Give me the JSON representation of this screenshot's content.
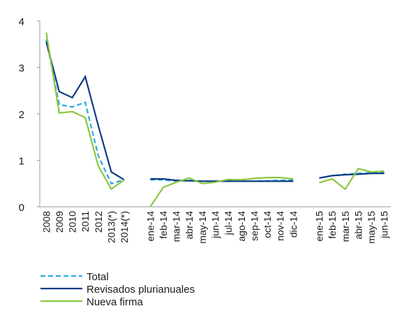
{
  "chart_data": {
    "type": "line",
    "categories": [
      "2008",
      "2009",
      "2010",
      "2011",
      "2012",
      "2013(*)",
      "2014(*)",
      null,
      "ene-14",
      "feb-14",
      "mar-14",
      "abr-14",
      "may-14",
      "jun-14",
      "jul-14",
      "ago-14",
      "sep-14",
      "oct-14",
      "nov-14",
      "dic-14",
      null,
      "ene-15",
      "feb-15",
      "mar-15",
      "abr-15",
      "may-15",
      "jun-15"
    ],
    "series": [
      {
        "name": "Total",
        "color": "#29a8e0",
        "dashed": true,
        "values": [
          3.6,
          2.2,
          2.15,
          2.25,
          1.1,
          0.5,
          0.58,
          null,
          0.58,
          0.58,
          0.55,
          0.57,
          0.55,
          0.55,
          0.55,
          0.55,
          0.55,
          0.56,
          0.57,
          0.57,
          null,
          0.62,
          0.67,
          0.7,
          0.72,
          0.73,
          0.74
        ]
      },
      {
        "name": "Revisados plurianuales",
        "color": "#0d3b85",
        "values": [
          3.55,
          2.48,
          2.35,
          2.8,
          1.75,
          0.75,
          0.58,
          null,
          0.6,
          0.6,
          0.57,
          0.56,
          0.55,
          0.55,
          0.55,
          0.55,
          0.55,
          0.55,
          0.55,
          0.55,
          null,
          0.62,
          0.67,
          0.69,
          0.7,
          0.72,
          0.72
        ]
      },
      {
        "name": "Nueva firma",
        "color": "#8cc63f",
        "values": [
          3.75,
          2.02,
          2.05,
          1.92,
          0.88,
          0.38,
          0.58,
          null,
          0.0,
          0.42,
          0.53,
          0.62,
          0.5,
          0.53,
          0.59,
          0.58,
          0.61,
          0.63,
          0.63,
          0.6,
          null,
          0.52,
          0.6,
          0.38,
          0.82,
          0.75,
          0.77
        ]
      }
    ],
    "ylim": [
      0,
      4
    ],
    "yticks": [
      0,
      1,
      2,
      3,
      4
    ]
  }
}
